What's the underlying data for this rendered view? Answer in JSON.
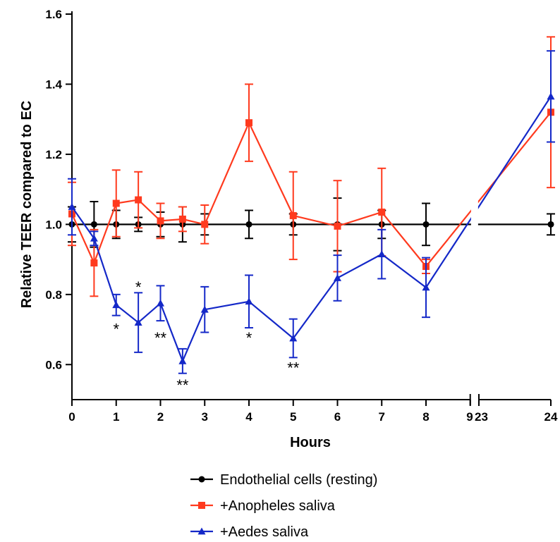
{
  "chart_data": {
    "type": "line",
    "xlabel": "Hours",
    "ylabel": "Relative TEER compared to EC",
    "ylim": [
      0.5,
      1.6
    ],
    "y_ticks": [
      "0.6",
      "0.8",
      "1.0",
      "1.2",
      "1.4",
      "1.6"
    ],
    "y_tick_values": [
      0.6,
      0.8,
      1.0,
      1.2,
      1.4,
      1.6
    ],
    "x_axis_break": [
      9,
      23
    ],
    "x_ticks": [
      "0",
      "1",
      "2",
      "3",
      "4",
      "5",
      "6",
      "7",
      "8",
      "9",
      "23",
      "24"
    ],
    "x_tick_values": [
      0,
      1,
      2,
      3,
      4,
      5,
      6,
      7,
      8,
      9,
      23,
      24
    ],
    "series": [
      {
        "name": "Endothelial cells (resting)",
        "color": "#000000",
        "marker": "circle",
        "x": [
          0,
          0.5,
          1,
          1.5,
          2,
          2.5,
          3,
          4,
          5,
          6,
          7,
          8,
          24
        ],
        "y": [
          1.0,
          1.0,
          1.0,
          1.0,
          1.0,
          1.0,
          1.0,
          1.0,
          1.0,
          1.0,
          1.0,
          1.0,
          1.0
        ],
        "error": [
          0.05,
          0.065,
          0.04,
          0.02,
          0.035,
          0.05,
          0.03,
          0.04,
          0.03,
          0.075,
          0.04,
          0.06,
          0.03
        ]
      },
      {
        "name": "+Anopheles saliva",
        "color": "#ff3a1e",
        "marker": "square",
        "x": [
          0,
          0.5,
          1,
          1.5,
          2,
          2.5,
          3,
          4,
          5,
          6,
          7,
          8,
          24
        ],
        "y": [
          1.03,
          0.89,
          1.06,
          1.07,
          1.01,
          1.015,
          1.0,
          1.29,
          1.025,
          0.995,
          1.035,
          0.88,
          1.32
        ],
        "error": [
          0.09,
          0.095,
          0.095,
          0.08,
          0.05,
          0.035,
          0.055,
          0.11,
          0.125,
          0.13,
          0.125,
          0.02,
          0.215
        ]
      },
      {
        "name": "+Aedes saliva",
        "color": "#1428c8",
        "marker": "triangle",
        "x": [
          0,
          0.5,
          1,
          1.5,
          2,
          2.5,
          3,
          4,
          5,
          6,
          7,
          8,
          24
        ],
        "y": [
          1.05,
          0.96,
          0.77,
          0.72,
          0.775,
          0.61,
          0.757,
          0.78,
          0.675,
          0.847,
          0.915,
          0.82,
          1.365
        ],
        "error": [
          0.08,
          0.02,
          0.03,
          0.085,
          0.05,
          0.035,
          0.065,
          0.075,
          0.055,
          0.065,
          0.07,
          0.085,
          0.13
        ]
      }
    ],
    "annotations": [
      {
        "text": "*",
        "x": 1,
        "y": 0.71
      },
      {
        "text": "*",
        "x": 1.5,
        "y": 0.83
      },
      {
        "text": "**",
        "x": 2,
        "y": 0.685
      },
      {
        "text": "**",
        "x": 2.5,
        "y": 0.55
      },
      {
        "text": "*",
        "x": 4,
        "y": 0.685
      },
      {
        "text": "**",
        "x": 5,
        "y": 0.6
      }
    ],
    "legend_position": "bottom-center"
  }
}
